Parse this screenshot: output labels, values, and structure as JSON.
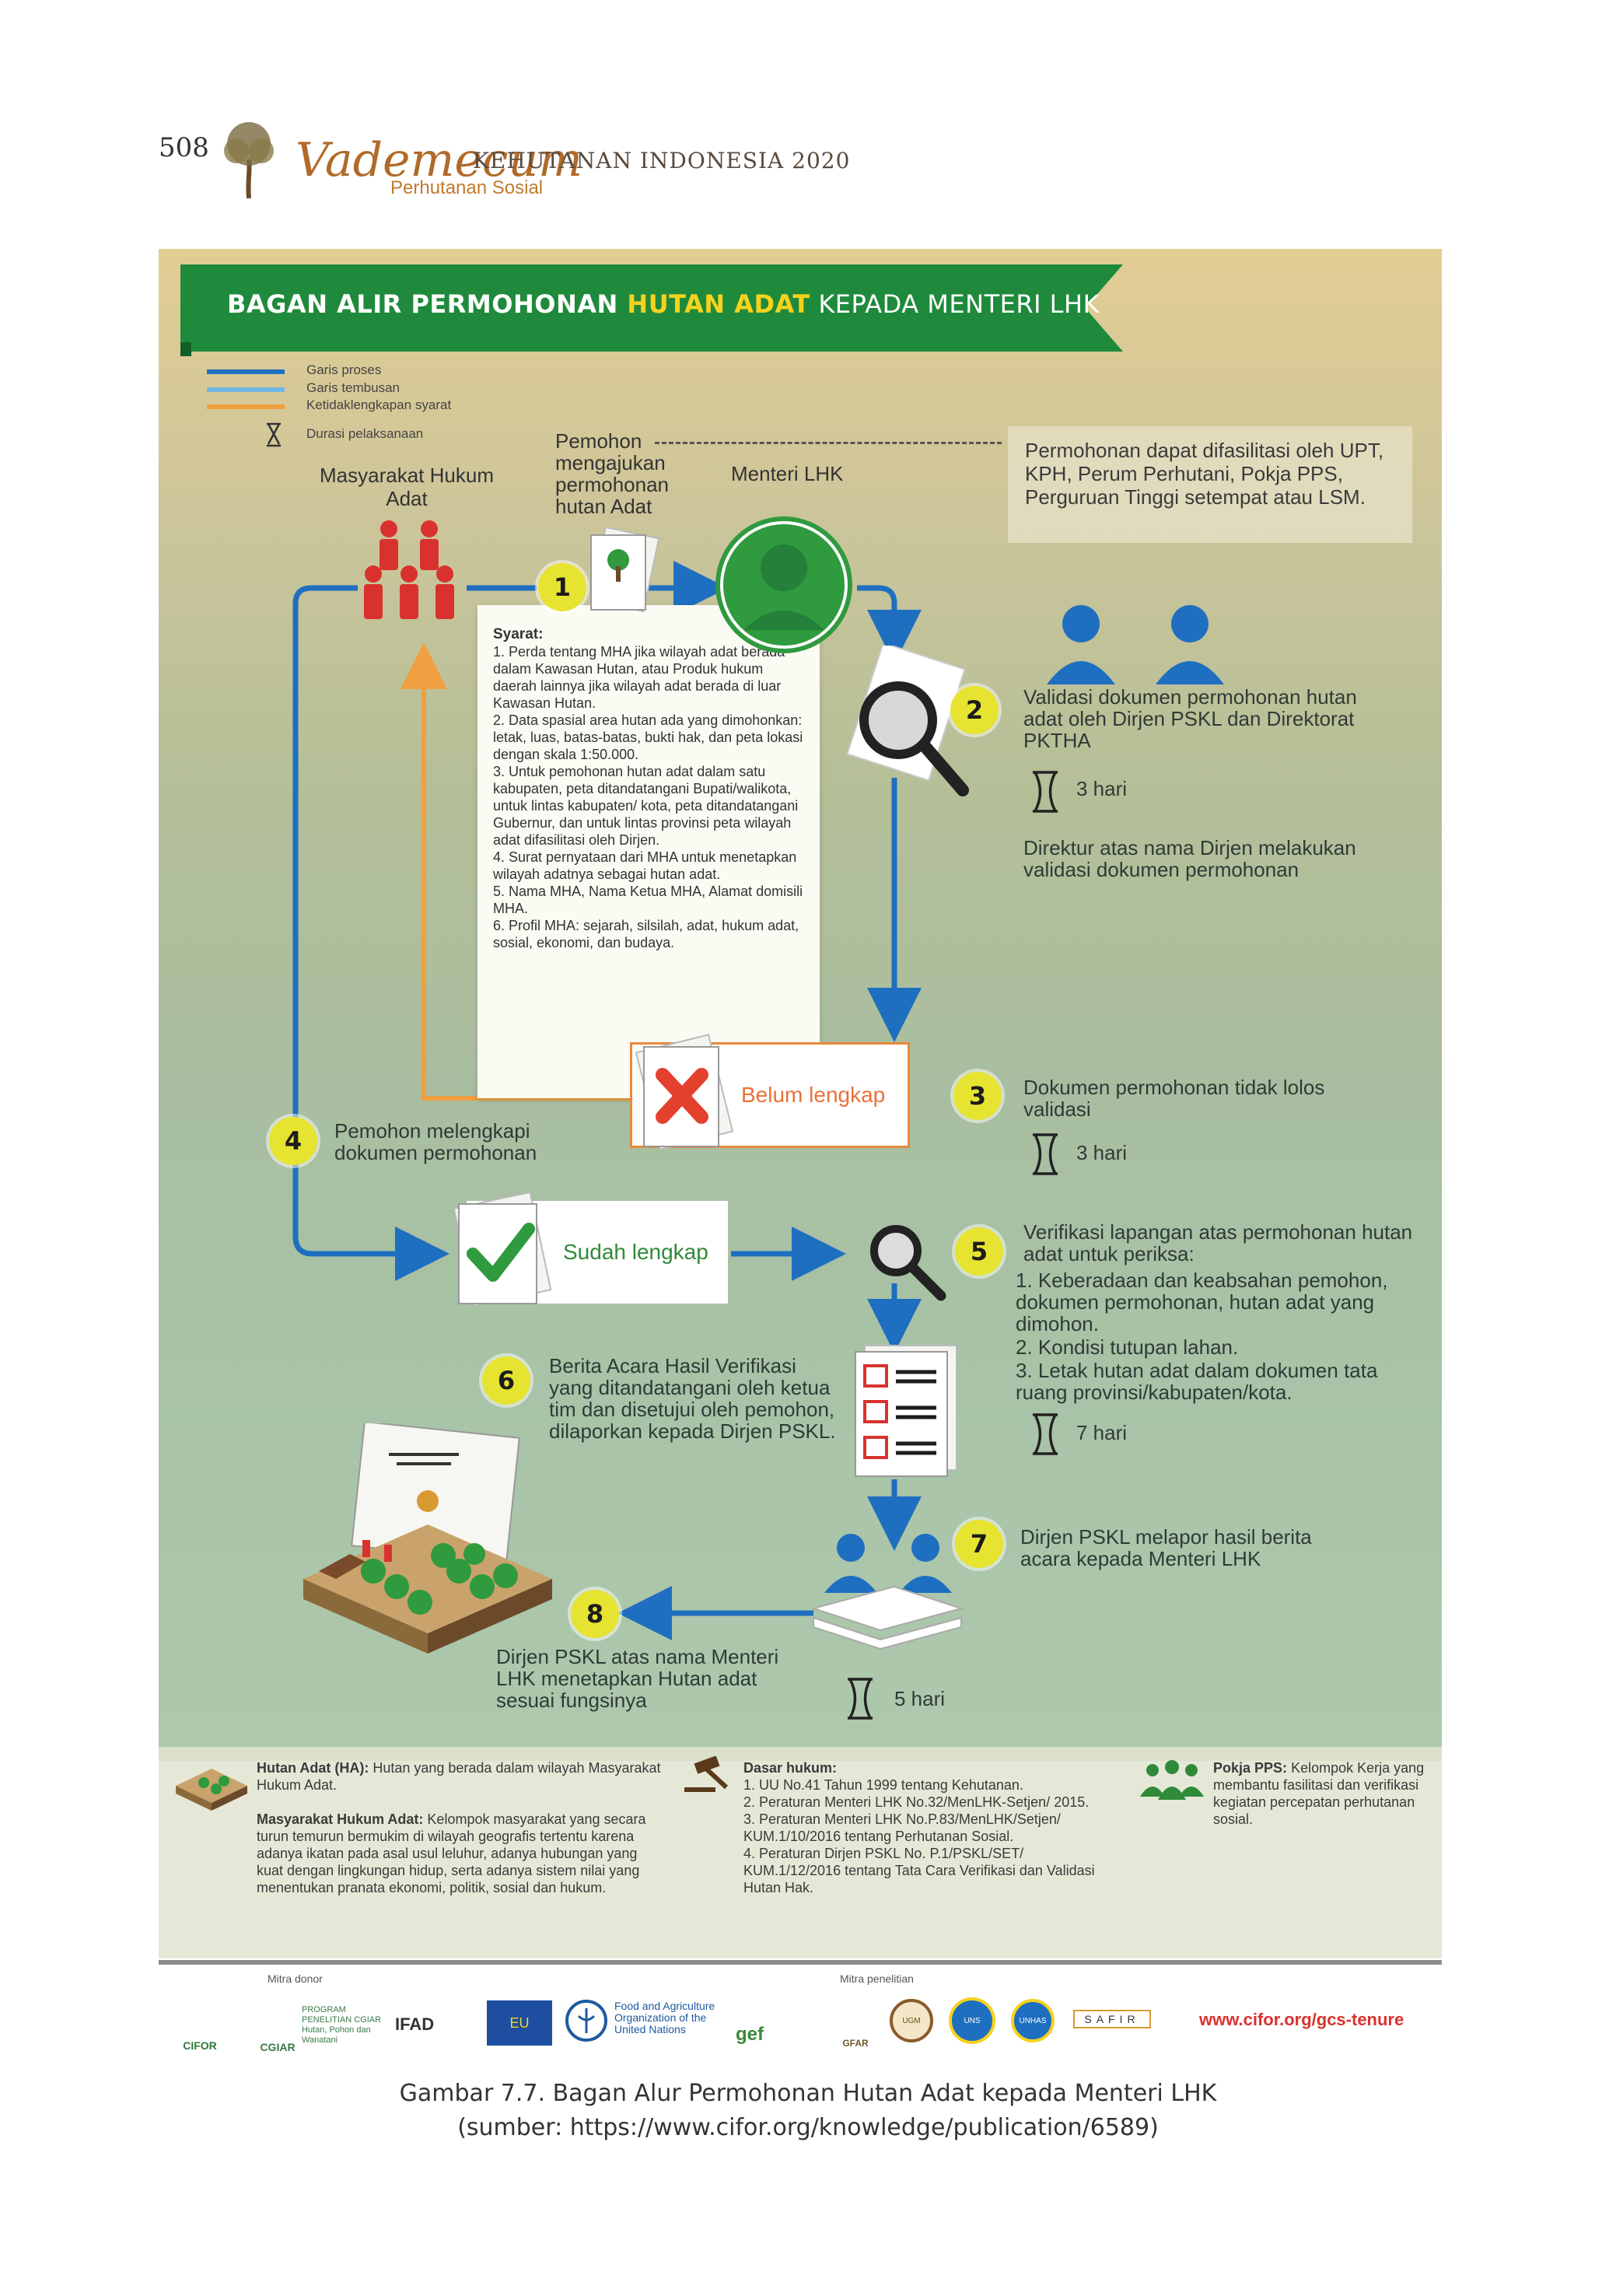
{
  "page": {
    "number": "508",
    "brand": "Vademecum",
    "brand_subtitle": "KEHUTANAN INDONESIA 2020",
    "section": "Perhutanan Sosial"
  },
  "banner": {
    "part1": "BAGAN ALIR PERMOHONAN ",
    "highlight": "HUTAN ADAT",
    "part2": " KEPADA MENTERI LHK"
  },
  "legend": [
    {
      "label": "Garis proses",
      "color": "#1e6fc0"
    },
    {
      "label": "Garis tembusan",
      "color": "#6fb8e6"
    },
    {
      "label": "Ketidaklengkapan syarat",
      "color": "#f0a040"
    },
    {
      "label": "Durasi pelaksanaan",
      "icon": "hourglass-icon"
    }
  ],
  "actors": {
    "mha": "Masyarakat Hukum Adat",
    "applicant": "Pemohon mengajukan permohonan hutan Adat",
    "minister": "Menteri LHK"
  },
  "note": "Permohonan dapat difasilitasi oleh UPT, KPH, Perum Perhutani, Pokja PPS, Perguruan Tinggi setempat atau LSM.",
  "requirements": {
    "title": "Syarat:",
    "items": [
      "1. Perda tentang MHA jika wilayah adat berada dalam Kawasan Hutan, atau Produk hukum daerah lainnya jika wilayah adat berada di luar Kawasan Hutan.",
      "2. Data spasial area hutan ada yang dimohonkan: letak, luas, batas-batas, bukti hak, dan peta lokasi dengan skala 1:50.000.",
      "3. Untuk pemohonan hutan adat dalam satu kabupaten, peta ditandatangani Bupati/walikota, untuk lintas kabupaten/ kota, peta ditandatangani Gubernur, dan untuk lintas provinsi peta wilayah adat difasilitasi oleh Dirjen.",
      "4. Surat pernyataan dari MHA untuk menetapkan wilayah adatnya sebagai hutan adat.",
      "5. Nama MHA, Nama Ketua MHA, Alamat domisili MHA.",
      "6. Profil MHA: sejarah, silsilah, adat, hukum adat, sosial, ekonomi, dan budaya."
    ]
  },
  "steps": {
    "s1": "1",
    "s2": {
      "num": "2",
      "text": "Validasi dokumen permohonan hutan adat oleh Dirjen PSKL dan Direktorat PKTHA",
      "duration": "3 hari",
      "extra": "Direktur atas nama Dirjen melakukan validasi dokumen permohonan"
    },
    "s3": {
      "num": "3",
      "text": "Dokumen permohonan tidak lolos validasi",
      "duration": "3 hari"
    },
    "s4": {
      "num": "4",
      "text": "Pemohon melengkapi dokumen permohonan"
    },
    "s5": {
      "num": "5",
      "title": "Verifikasi lapangan atas permohonan hutan adat untuk periksa:",
      "items": [
        "1. Keberadaan dan keabsahan pemohon, dokumen permohonan, hutan adat yang dimohon.",
        "2. Kondisi tutupan lahan.",
        "3. Letak hutan adat dalam dokumen tata ruang provinsi/kabupaten/kota."
      ],
      "duration": "7 hari"
    },
    "s6": {
      "num": "6",
      "text": "Berita Acara Hasil Verifikasi yang ditandatangani oleh ketua tim dan disetujui oleh pemohon, dilaporkan kepada Dirjen PSKL."
    },
    "s7": {
      "num": "7",
      "text": "Dirjen PSKL melapor hasil berita acara kepada Menteri LHK"
    },
    "s8": {
      "num": "8",
      "text": "Dirjen PSKL atas nama Menteri LHK menetapkan Hutan adat sesuai fungsinya",
      "duration": "5 hari"
    }
  },
  "tags": {
    "incomplete": "Belum lengkap",
    "complete": "Sudah lengkap"
  },
  "definitions": {
    "ha_title": "Hutan Adat (HA):",
    "ha_text": "Hutan yang berada dalam wilayah Masyarakat Hukum Adat.",
    "mha_title": "Masyarakat Hukum Adat:",
    "mha_text": "Kelompok masyarakat yang secara turun temurun bermukim di wilayah geografis tertentu karena adanya ikatan pada asal usul leluhur, adanya hubungan yang kuat dengan lingkungan hidup, serta adanya sistem nilai yang menentukan pranata ekonomi, politik, sosial dan hukum.",
    "law_title": "Dasar hukum:",
    "law_items": [
      "1. UU No.41 Tahun 1999 tentang Kehutanan.",
      "2. Peraturan Menteri LHK No.32/MenLHK-Setjen/ 2015.",
      "3. Peraturan Menteri LHK No.P.83/MenLHK/Setjen/ KUM.1/10/2016 tentang Perhutanan Sosial.",
      "4. Peraturan Dirjen PSKL No. P.1/PSKL/SET/ KUM.1/12/2016 tentang Tata Cara Verifikasi dan Validasi Hutan Hak."
    ],
    "pokja_title": "Pokja PPS:",
    "pokja_text": "Kelompok Kerja yang membantu fasilitasi dan verifikasi kegiatan percepatan perhutanan sosial."
  },
  "footer": {
    "donor_label": "Mitra donor",
    "research_label": "Mitra penelitian",
    "logos_donor": [
      "CIFOR",
      "CGIAR",
      "PROGRAM PENELITIAN CGIAR Hutan, Pohon dan Wanatani",
      "IFAD",
      "EU",
      "Food and Agriculture Organization of the United Nations",
      "gef"
    ],
    "logos_research": [
      "GFAR",
      "UGM",
      "UNS",
      "UNHAS",
      "SAFIR"
    ],
    "url": "www.cifor.org/gcs-tenure"
  },
  "caption": {
    "title": "Gambar 7.7. Bagan Alur Permohonan Hutan Adat kepada Menteri LHK",
    "source": "(sumber: https://www.cifor.org/knowledge/publication/6589)"
  },
  "colors": {
    "process": "#1e6fc0",
    "copy": "#6fb8e6",
    "incomplete": "#f0a040",
    "banner": "#1f8a3c",
    "highlight": "#f7d21c",
    "circle": "#e6e431"
  }
}
